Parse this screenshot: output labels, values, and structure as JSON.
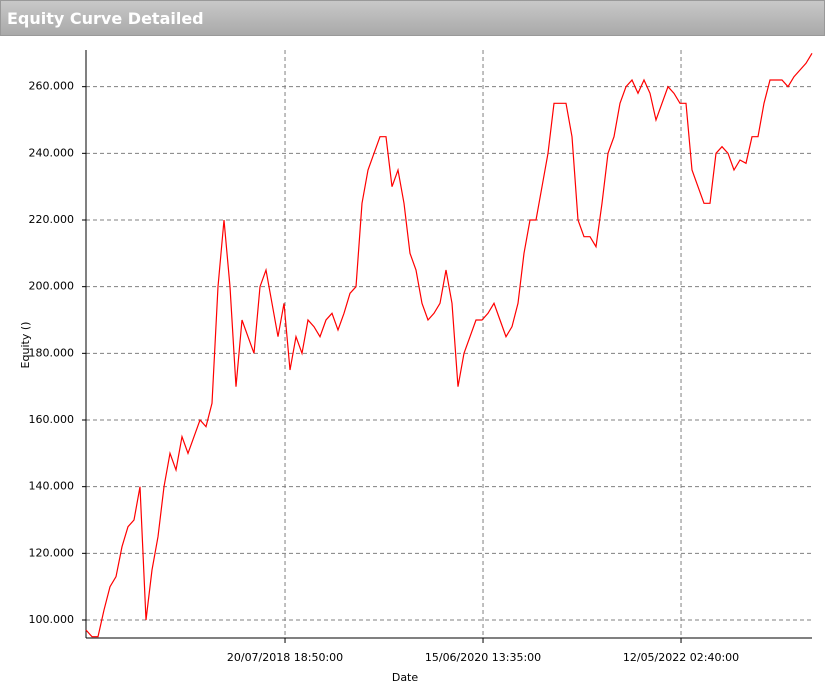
{
  "chart_data": {
    "type": "line",
    "title": "Equity Curve Detailed",
    "x_label": "Date",
    "y_label": "Equity ()",
    "x": [
      0,
      1,
      2,
      3,
      4,
      5,
      6,
      7,
      8,
      9,
      10,
      11,
      12,
      13,
      14,
      15,
      16,
      17,
      18,
      19,
      20,
      21,
      22,
      23,
      24,
      25,
      26,
      27,
      28,
      29,
      30,
      31,
      32,
      33,
      34,
      35,
      36,
      37,
      38,
      39,
      40,
      41,
      42,
      43,
      44,
      45,
      46,
      47,
      48,
      49,
      50,
      51,
      52,
      53,
      54,
      55,
      56,
      57,
      58,
      59,
      60,
      61,
      62,
      63,
      64,
      65,
      66,
      67,
      68,
      69,
      70,
      71,
      72,
      73,
      74,
      75,
      76,
      77,
      78,
      79,
      80,
      81,
      82,
      83,
      84,
      85,
      86,
      87,
      88,
      89,
      90,
      91,
      92,
      93,
      94,
      95,
      96,
      97,
      98,
      99,
      100,
      101,
      102,
      103,
      104,
      105,
      106,
      107,
      108,
      109,
      110,
      111,
      112,
      113,
      114,
      115,
      116,
      117,
      118,
      119,
      120,
      121
    ],
    "series": [
      {
        "name": "Equity",
        "color": "#ff0000",
        "values": [
          97,
          95,
          95,
          103,
          110,
          113,
          122,
          128,
          130,
          140,
          100,
          115,
          125,
          140,
          150,
          145,
          155,
          150,
          155,
          160,
          158,
          165,
          200,
          220,
          200,
          170,
          190,
          185,
          180,
          200,
          205,
          195,
          185,
          195,
          175,
          185,
          180,
          190,
          188,
          185,
          190,
          192,
          187,
          192,
          198,
          200,
          225,
          235,
          240,
          245,
          245,
          230,
          235,
          225,
          210,
          205,
          195,
          190,
          192,
          195,
          205,
          195,
          170,
          180,
          185,
          190,
          190,
          192,
          195,
          190,
          185,
          188,
          195,
          210,
          220,
          220,
          230,
          240,
          255,
          255,
          255,
          245,
          220,
          215,
          215,
          212,
          225,
          240,
          245,
          255,
          260,
          262,
          258,
          262,
          258,
          250,
          255,
          260,
          258,
          255,
          255,
          235,
          230,
          225,
          225,
          240,
          242,
          240,
          235,
          238,
          237,
          245,
          245,
          255,
          262,
          262,
          262,
          260,
          263,
          265,
          267,
          270
        ]
      }
    ],
    "xlim": [
      0,
      121
    ],
    "xticks": [
      {
        "value": 33.17,
        "label": "20/07/2018 18:50:00"
      },
      {
        "value": 66.17,
        "label": "15/06/2020 13:35:00"
      },
      {
        "value": 99.17,
        "label": "12/05/2022 02:40:00"
      }
    ],
    "ylim": [
      94.6,
      271
    ],
    "yticks": [
      {
        "value": 100,
        "label": "100.000"
      },
      {
        "value": 120,
        "label": "120.000"
      },
      {
        "value": 140,
        "label": "140.000"
      },
      {
        "value": 160,
        "label": "160.000"
      },
      {
        "value": 180,
        "label": "180.000"
      },
      {
        "value": 200,
        "label": "200.000"
      },
      {
        "value": 220,
        "label": "220.000"
      },
      {
        "value": 240,
        "label": "240.000"
      },
      {
        "value": 260,
        "label": "260.000"
      }
    ],
    "grid": true
  }
}
